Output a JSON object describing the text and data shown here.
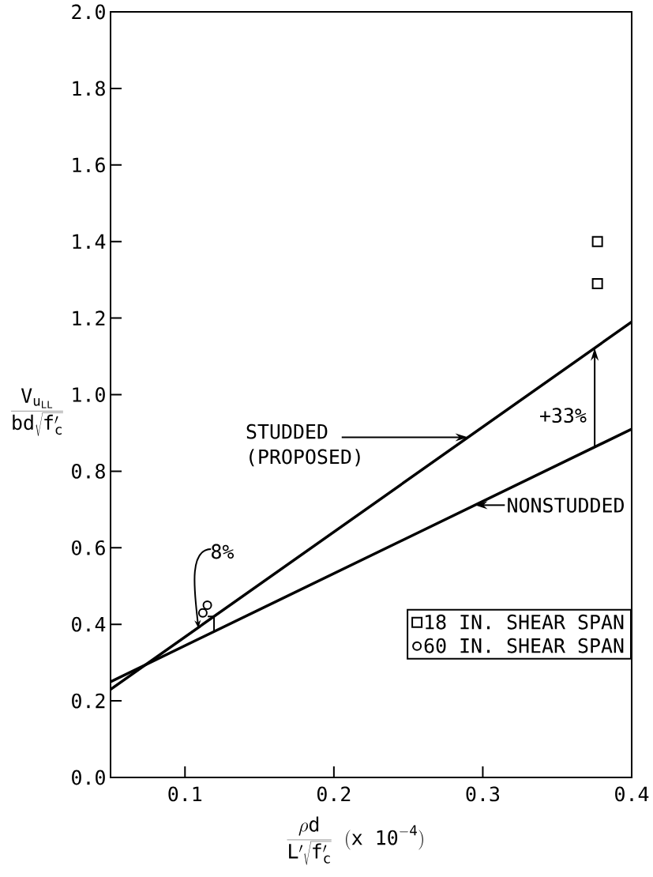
{
  "chart_data": {
    "type": "line",
    "xlabel": "\\frac{\\rho \\mathrm{d}}{\\mathrm{L}'\\sqrt{\\mathrm{f}'_{\\mathrm{c}}}}\\ \\mathrm{(x\\ 10}^{\\mathrm{-4}}\\mathrm{)}",
    "ylabel": "\\frac{\\mathrm{V}_{\\mathrm{u}_{\\mathrm{LL}}}}{\\mathrm{bd}\\sqrt{\\mathrm{f}'_{\\mathrm{c}}}}",
    "xlim": [
      0.05,
      0.4
    ],
    "ylim": [
      0,
      2
    ],
    "xticks": [
      0.1,
      0.2,
      0.3,
      0.4
    ],
    "yticks": [
      {
        "value": 0,
        "label": "0.0"
      },
      0.2,
      0.4,
      0.6,
      0.8,
      {
        "value": 1,
        "label": "1.0"
      },
      1.2,
      1.4,
      1.6,
      1.8,
      {
        "value": 2,
        "label": "2.0"
      }
    ],
    "legend": "bottom right",
    "series": [
      {
        "name": "STUDDED (PROPOSED)",
        "x": [
          0.05,
          0.4
        ],
        "values": [
          0.23,
          1.19
        ],
        "color": "#000000"
      },
      {
        "name": "NONSTUDDED",
        "x": [
          0.05,
          0.4
        ],
        "values": [
          0.25,
          0.91
        ],
        "color": "#000000"
      },
      {
        "name": "18 IN. SHEAR SPAN",
        "type": "scatter",
        "x": [
          0.377,
          0.377
        ],
        "values": [
          1.4,
          1.29
        ],
        "color": "#000000",
        "marker": "square"
      },
      {
        "name": "60 IN. SHEAR SPAN",
        "type": "scatter",
        "x": [
          0.112,
          0.115
        ],
        "values": [
          0.43,
          0.45
        ],
        "color": "#000000",
        "marker": "circle"
      }
    ],
    "annotations": [
      "+33%",
      {
        "text": "8%",
        "x": 0.109,
        "y": 0.39
      }
    ]
  }
}
